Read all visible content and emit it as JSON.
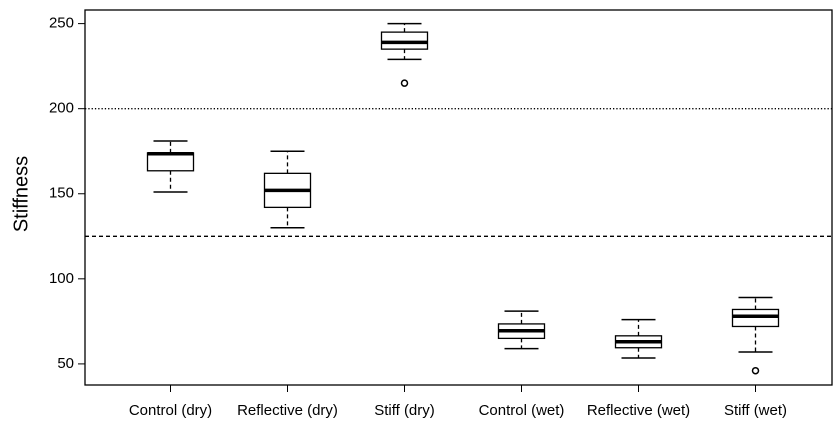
{
  "chart_data": {
    "type": "box",
    "y_label": "Stiffness",
    "categories": [
      "Control (dry)",
      "Reflective (dry)",
      "Stiff (dry)",
      "Control (wet)",
      "Reflective (wet)",
      "Stiff (wet)"
    ],
    "boxes": [
      {
        "min": 151,
        "q1": 163.5,
        "median": 173.5,
        "q3": 174,
        "max": 181,
        "outliers": []
      },
      {
        "min": 130,
        "q1": 142,
        "median": 152,
        "q3": 162,
        "max": 175,
        "outliers": []
      },
      {
        "min": 229,
        "q1": 235,
        "median": 239,
        "q3": 245,
        "max": 250,
        "outliers": [
          215
        ]
      },
      {
        "min": 59,
        "q1": 65,
        "median": 69.5,
        "q3": 73.5,
        "max": 81,
        "outliers": []
      },
      {
        "min": 53.5,
        "q1": 59.5,
        "median": 63,
        "q3": 66.5,
        "max": 76,
        "outliers": []
      },
      {
        "min": 57,
        "q1": 72,
        "median": 78,
        "q3": 82,
        "max": 89,
        "outliers": [
          46
        ]
      }
    ],
    "reference_lines": [
      {
        "value": 200,
        "style": "dotted"
      },
      {
        "value": 125,
        "style": "dashed"
      }
    ],
    "ylim": [
      37.6,
      258
    ],
    "yticks": [
      50,
      100,
      150,
      200,
      250
    ],
    "color": "#000000"
  }
}
